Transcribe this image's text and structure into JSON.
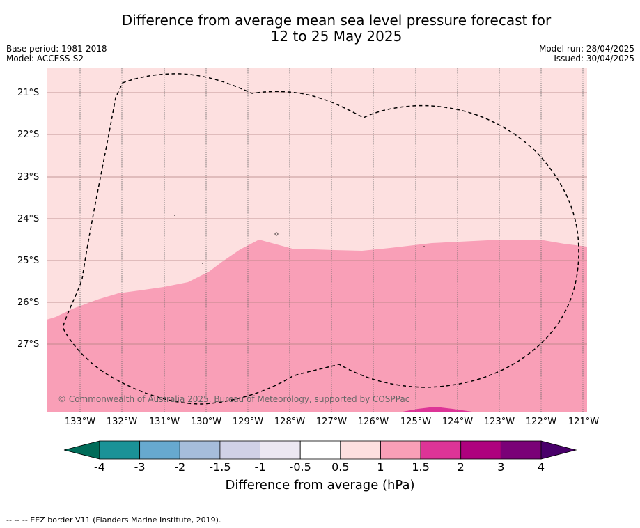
{
  "header": {
    "title_line1": "Difference from average mean sea level pressure forecast for",
    "title_line2": "12 to 25 May 2025",
    "base_period": "Base period: 1981-2018",
    "model": "Model: ACCESS-S2",
    "model_run": "Model run: 28/04/2025",
    "issued": "Issued: 30/04/2025"
  },
  "map": {
    "latitudes": [
      "21°S",
      "22°S",
      "23°S",
      "24°S",
      "25°S",
      "26°S",
      "27°S"
    ],
    "longitudes": [
      "133°W",
      "132°W",
      "131°W",
      "130°W",
      "129°W",
      "128°W",
      "127°W",
      "126°W",
      "125°W",
      "124°W",
      "123°W",
      "122°W",
      "121°W"
    ],
    "copyright": "© Commonwealth of Australia 2025, Bureau of Meteorology, supported by COSPPac",
    "colors": {
      "light_pink_0_5_to_1": "#fde0e0",
      "pink_1_to_1_5": "#f99fb7",
      "magenta_1_5_to_2": "#dd3497"
    }
  },
  "colorbar": {
    "ticks": [
      "-4",
      "-3",
      "-2",
      "-1.5",
      "-1",
      "-0.5",
      "0.5",
      "1",
      "1.5",
      "2",
      "3",
      "4"
    ],
    "colors": [
      "#1a9297",
      "#67a9cf",
      "#a6bddb",
      "#d0d1e6",
      "#ece7f2",
      "#ffffff",
      "#fde0e0",
      "#f99fb7",
      "#dd3497",
      "#ae017e",
      "#7a0177"
    ],
    "under_color": "#016c59",
    "over_color": "#49006a",
    "label": "Difference from average (hPa)"
  },
  "footnote": "--  --  -- EEZ border V11 (Flanders Marine Institute, 2019)."
}
